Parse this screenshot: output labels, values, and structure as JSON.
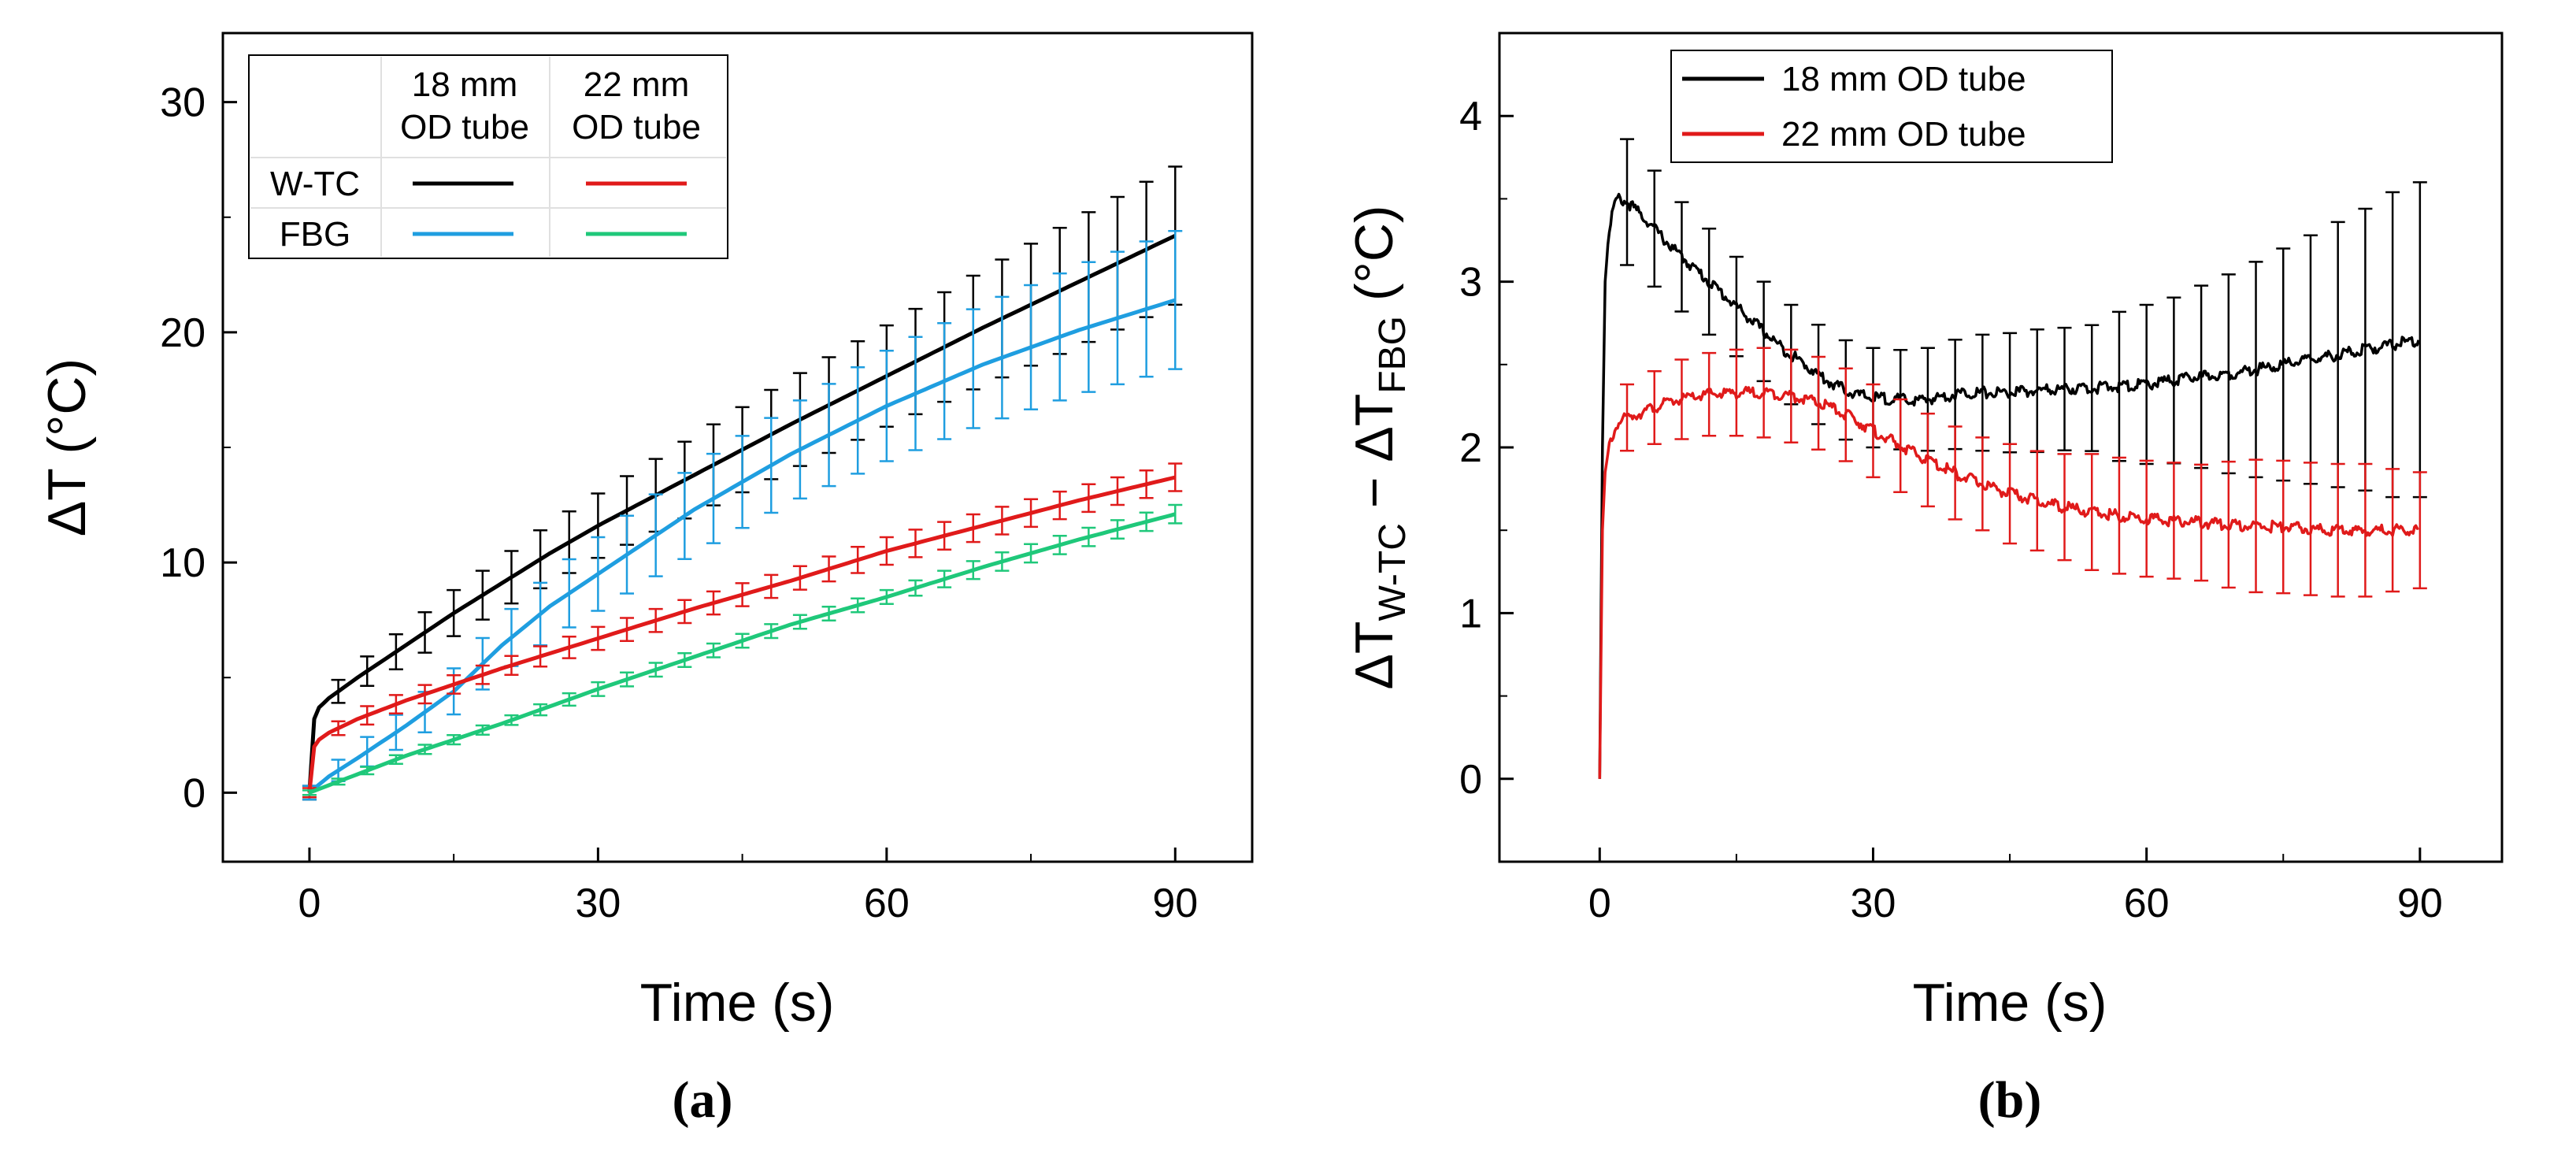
{
  "chart_data": [
    {
      "type": "line",
      "panel_label": "(a)",
      "xlabel": "Time (s)",
      "ylabel": "ΔT (°C)",
      "xlim": [
        -9,
        98
      ],
      "ylim": [
        -3,
        33
      ],
      "xticks": [
        0,
        30,
        60,
        90
      ],
      "yticks": [
        0,
        10,
        20,
        30
      ],
      "legend": {
        "location": "top-left",
        "col_headers": [
          [
            "18 mm",
            "OD tube"
          ],
          [
            "22 mm",
            "OD tube"
          ]
        ],
        "row_labels": [
          "W-TC",
          "FBG"
        ]
      },
      "series": [
        {
          "name": "W-TC 18 mm OD tube",
          "color": "#000000",
          "x": [
            0,
            0.5,
            1,
            2,
            3,
            5,
            10,
            15,
            20,
            25,
            30,
            40,
            50,
            60,
            70,
            80,
            90
          ],
          "y": [
            0,
            3.2,
            3.7,
            4.1,
            4.4,
            5.0,
            6.4,
            7.8,
            9.1,
            10.4,
            11.6,
            13.8,
            16.0,
            18.1,
            20.2,
            22.2,
            24.2
          ],
          "error": [
            0.3,
            0.4,
            0.4,
            0.5,
            0.5,
            0.6,
            0.8,
            1.0,
            1.1,
            1.3,
            1.4,
            1.7,
            2.0,
            2.2,
            2.5,
            2.8,
            3.0
          ]
        },
        {
          "name": "FBG 18 mm OD tube",
          "color": "#1f9ee0",
          "x": [
            0,
            2,
            5,
            10,
            15,
            20,
            25,
            30,
            40,
            50,
            60,
            70,
            80,
            90
          ],
          "y": [
            0,
            0.7,
            1.5,
            2.9,
            4.4,
            6.4,
            8.1,
            9.5,
            12.3,
            14.7,
            16.8,
            18.6,
            20.1,
            21.4
          ],
          "error": [
            0.3,
            0.4,
            0.6,
            0.8,
            1.0,
            1.2,
            1.4,
            1.6,
            1.9,
            2.1,
            2.4,
            2.6,
            2.8,
            3.0
          ]
        },
        {
          "name": "W-TC 22 mm OD tube",
          "color": "#e01a1a",
          "x": [
            0,
            0.5,
            1,
            2,
            3,
            5,
            10,
            20,
            30,
            40,
            50,
            60,
            70,
            80,
            90
          ],
          "y": [
            0,
            2.0,
            2.3,
            2.6,
            2.8,
            3.2,
            4.0,
            5.4,
            6.7,
            8.0,
            9.2,
            10.5,
            11.6,
            12.7,
            13.7
          ],
          "error": [
            0.2,
            0.3,
            0.3,
            0.3,
            0.3,
            0.4,
            0.4,
            0.4,
            0.5,
            0.5,
            0.5,
            0.6,
            0.6,
            0.6,
            0.6
          ]
        },
        {
          "name": "FBG 22 mm OD tube",
          "color": "#1fc87a",
          "x": [
            0,
            10,
            20,
            30,
            40,
            50,
            60,
            70,
            80,
            90
          ],
          "y": [
            0,
            1.6,
            3.0,
            4.5,
            5.9,
            7.3,
            8.5,
            9.8,
            11.0,
            12.1
          ],
          "error": [
            0.1,
            0.2,
            0.2,
            0.3,
            0.3,
            0.3,
            0.3,
            0.4,
            0.4,
            0.4
          ]
        }
      ]
    },
    {
      "type": "line",
      "panel_label": "(b)",
      "xlabel": "Time (s)",
      "ylabel_main": "ΔT",
      "ylabel_sub1": "W-TC",
      "ylabel_mid": " − ΔT",
      "ylabel_sub2": "FBG",
      "ylabel_unit": " (°C)",
      "xlim": [
        -11,
        99
      ],
      "ylim": [
        -0.5,
        4.5
      ],
      "xticks": [
        0,
        30,
        60,
        90
      ],
      "yticks": [
        0,
        1,
        2,
        3,
        4
      ],
      "legend": {
        "location": "top-left",
        "entries": [
          "18 mm OD tube",
          "22 mm OD tube"
        ]
      },
      "series": [
        {
          "name": "18 mm OD tube",
          "color": "#000000",
          "x": [
            0,
            0.3,
            0.6,
            1,
            1.5,
            2,
            3,
            5,
            8,
            10,
            12,
            15,
            18,
            20,
            22,
            25,
            28,
            30,
            35,
            40,
            45,
            50,
            55,
            60,
            65,
            70,
            75,
            80,
            85,
            90
          ],
          "y": [
            0,
            2.0,
            3.0,
            3.3,
            3.45,
            3.5,
            3.48,
            3.38,
            3.2,
            3.1,
            3.0,
            2.85,
            2.7,
            2.6,
            2.52,
            2.4,
            2.32,
            2.3,
            2.28,
            2.33,
            2.33,
            2.35,
            2.36,
            2.38,
            2.42,
            2.45,
            2.5,
            2.55,
            2.6,
            2.65
          ],
          "err_x": [
            3,
            6,
            9,
            12,
            15,
            18,
            21,
            24,
            27,
            30,
            33,
            36,
            39,
            42,
            45,
            48,
            51,
            54,
            57,
            60,
            63,
            66,
            69,
            72,
            75,
            78,
            81,
            84,
            87,
            90
          ],
          "err": [
            0.38,
            0.35,
            0.33,
            0.32,
            0.3,
            0.3,
            0.3,
            0.3,
            0.3,
            0.3,
            0.3,
            0.31,
            0.33,
            0.35,
            0.36,
            0.37,
            0.37,
            0.38,
            0.45,
            0.48,
            0.5,
            0.55,
            0.6,
            0.65,
            0.7,
            0.75,
            0.8,
            0.85,
            0.92,
            0.95
          ]
        },
        {
          "name": "22 mm OD tube",
          "color": "#e01a1a",
          "x": [
            0,
            0.3,
            0.6,
            1,
            1.5,
            2,
            3,
            5,
            8,
            10,
            12,
            15,
            18,
            20,
            22,
            25,
            28,
            30,
            35,
            40,
            45,
            50,
            55,
            60,
            65,
            70,
            75,
            80,
            85,
            90
          ],
          "y": [
            0,
            1.5,
            1.85,
            2.0,
            2.08,
            2.15,
            2.18,
            2.22,
            2.28,
            2.3,
            2.32,
            2.33,
            2.33,
            2.32,
            2.3,
            2.25,
            2.17,
            2.1,
            1.95,
            1.82,
            1.72,
            1.65,
            1.6,
            1.57,
            1.55,
            1.53,
            1.52,
            1.5,
            1.5,
            1.5
          ],
          "err_x": [
            3,
            6,
            9,
            12,
            15,
            18,
            21,
            24,
            27,
            30,
            33,
            36,
            39,
            42,
            45,
            48,
            51,
            54,
            57,
            60,
            63,
            66,
            69,
            72,
            75,
            78,
            81,
            84,
            87,
            90
          ],
          "err": [
            0.2,
            0.22,
            0.24,
            0.25,
            0.26,
            0.27,
            0.28,
            0.28,
            0.28,
            0.28,
            0.28,
            0.28,
            0.28,
            0.28,
            0.3,
            0.3,
            0.32,
            0.35,
            0.35,
            0.35,
            0.35,
            0.35,
            0.38,
            0.4,
            0.4,
            0.4,
            0.4,
            0.4,
            0.37,
            0.35
          ]
        }
      ]
    }
  ]
}
